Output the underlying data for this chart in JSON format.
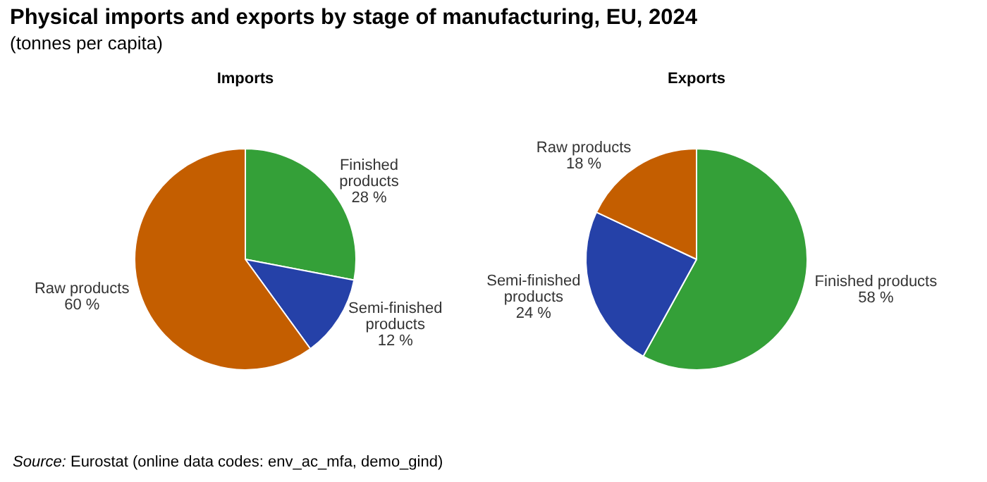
{
  "chart_data": [
    {
      "type": "other",
      "title": "Physical imports and exports by stage of manufacturing, EU, 2024",
      "subtitle": "(tonnes per capita)",
      "annotations": [
        "Source: Eurostat (online data codes: env_ac_mfa, demo_gind)"
      ]
    },
    {
      "type": "pie",
      "title": "Imports",
      "categories": [
        "Finished products",
        "Semi-finished products",
        "Raw products"
      ],
      "values": [
        28,
        12,
        60
      ],
      "colors": [
        "#34a038",
        "#2541a8",
        "#c45e00"
      ],
      "value_labels": [
        "28 %",
        "12 %",
        "60 %"
      ]
    },
    {
      "type": "pie",
      "title": "Exports",
      "categories": [
        "Finished products",
        "Semi-finished products",
        "Raw products"
      ],
      "values": [
        58,
        24,
        18
      ],
      "colors": [
        "#34a038",
        "#2541a8",
        "#c45e00"
      ],
      "value_labels": [
        "58 %",
        "24 %",
        "18 %"
      ]
    }
  ]
}
